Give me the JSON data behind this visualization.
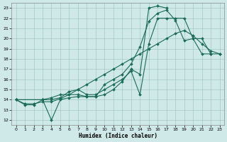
{
  "xlabel": "Humidex (Indice chaleur)",
  "ylabel": "",
  "bg_color": "#cfe8e8",
  "grid_color": "#9bbfbf",
  "line_color": "#1a6b5a",
  "xlim": [
    -0.5,
    23.5
  ],
  "ylim": [
    11.5,
    23.5
  ],
  "xtick_labels": [
    "0",
    "1",
    "2",
    "3",
    "4",
    "5",
    "6",
    "7",
    "8",
    "9",
    "10",
    "11",
    "12",
    "13",
    "14",
    "15",
    "16",
    "17",
    "18",
    "19",
    "20",
    "21",
    "22",
    "23"
  ],
  "ytick_labels": [
    "12",
    "13",
    "14",
    "15",
    "16",
    "17",
    "18",
    "19",
    "20",
    "21",
    "22",
    "23"
  ],
  "xticks": [
    0,
    1,
    2,
    3,
    4,
    5,
    6,
    7,
    8,
    9,
    10,
    11,
    12,
    13,
    14,
    15,
    16,
    17,
    18,
    19,
    20,
    21,
    22,
    23
  ],
  "yticks": [
    12,
    13,
    14,
    15,
    16,
    17,
    18,
    19,
    20,
    21,
    22,
    23
  ],
  "series": [
    {
      "x": [
        0,
        1,
        2,
        3,
        4,
        5,
        6,
        7,
        8,
        9,
        10,
        11,
        12,
        13,
        14,
        15,
        16,
        17
      ],
      "y": [
        14.0,
        13.5,
        13.5,
        14.0,
        12.0,
        14.0,
        14.2,
        14.3,
        14.3,
        14.3,
        14.5,
        15.0,
        15.8,
        17.0,
        16.5,
        23.0,
        23.2,
        23.0
      ]
    },
    {
      "x": [
        0,
        3,
        4,
        5,
        6,
        7,
        8,
        9,
        10,
        11,
        12,
        13,
        14,
        15,
        16,
        17,
        18,
        19,
        20,
        21,
        22
      ],
      "y": [
        14.0,
        14.0,
        14.2,
        14.5,
        14.5,
        14.5,
        14.3,
        14.3,
        15.5,
        16.0,
        16.5,
        17.5,
        19.2,
        21.7,
        22.5,
        22.8,
        21.8,
        19.8,
        20.0,
        18.5,
        18.5
      ]
    },
    {
      "x": [
        0,
        1,
        2,
        3,
        4,
        5,
        6,
        7,
        8,
        9,
        10,
        11,
        12,
        13,
        14,
        15,
        16,
        17,
        18,
        19,
        20,
        21,
        22,
        23
      ],
      "y": [
        14.0,
        13.6,
        13.6,
        13.8,
        13.8,
        14.1,
        14.5,
        15.0,
        15.5,
        16.0,
        16.5,
        17.0,
        17.5,
        18.0,
        18.5,
        19.0,
        19.5,
        20.0,
        20.5,
        20.8,
        20.3,
        19.5,
        18.8,
        18.5
      ]
    },
    {
      "x": [
        0,
        3,
        4,
        5,
        6,
        7,
        8,
        9,
        10,
        11,
        12,
        13,
        14,
        15,
        16,
        17,
        18,
        19,
        20,
        21,
        22,
        23
      ],
      "y": [
        14.0,
        14.0,
        14.0,
        14.2,
        14.8,
        15.0,
        14.5,
        14.5,
        15.0,
        15.5,
        16.0,
        16.8,
        14.5,
        19.5,
        22.0,
        22.0,
        22.0,
        22.0,
        20.0,
        20.0,
        18.5,
        18.5
      ]
    }
  ]
}
